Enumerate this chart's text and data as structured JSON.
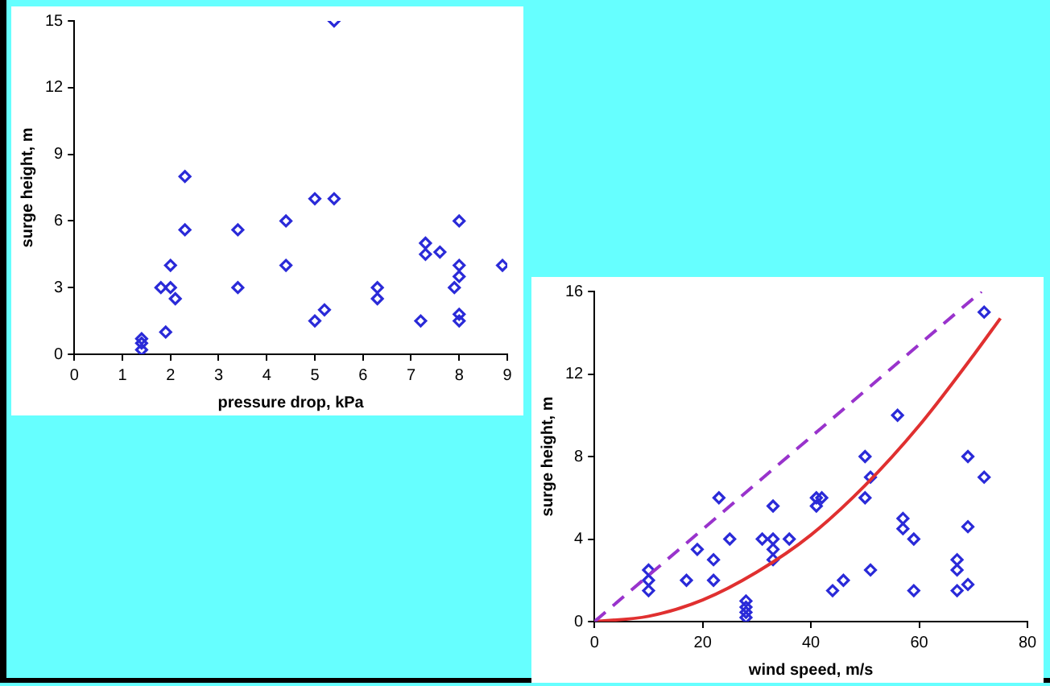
{
  "chart_data": [
    {
      "type": "scatter",
      "xlabel": "pressure drop, kPa",
      "ylabel": "surge height, m",
      "xlim": [
        0,
        9
      ],
      "xticks": [
        0,
        1,
        2,
        3,
        4,
        5,
        6,
        7,
        8,
        9
      ],
      "ylim": [
        0,
        15
      ],
      "yticks": [
        0,
        3,
        6,
        9,
        12,
        15
      ],
      "grid": false,
      "legend": false,
      "marker": "diamond",
      "series": [
        {
          "color": "#2a2ad8",
          "x": [
            1.4,
            1.4,
            1.4,
            1.8,
            1.9,
            2,
            2,
            2.1,
            2.3,
            2.3,
            3.4,
            3.4,
            4.4,
            4.4,
            5,
            5,
            5.2,
            5.4,
            5.4,
            6.3,
            6.3,
            7.2,
            7.3,
            7.3,
            7.6,
            7.9,
            8,
            8,
            8,
            8,
            8,
            8.9
          ],
          "values": [
            0.2,
            0.5,
            0.7,
            3,
            1,
            3,
            4,
            2.5,
            5.6,
            8,
            5.6,
            3,
            6,
            4,
            7,
            1.5,
            2,
            7,
            15,
            3,
            2.5,
            1.5,
            5,
            4.5,
            4.6,
            3,
            6,
            4,
            3.5,
            1.8,
            1.5,
            4
          ]
        }
      ]
    },
    {
      "type": "scatter",
      "xlabel": "wind speed, m/s",
      "ylabel": "surge height, m",
      "xlim": [
        0,
        80
      ],
      "xticks": [
        0,
        20,
        40,
        60,
        80
      ],
      "ylim": [
        0,
        16
      ],
      "yticks": [
        0,
        4,
        8,
        12,
        16
      ],
      "grid": false,
      "legend": false,
      "marker": "diamond",
      "series": [
        {
          "type": "line",
          "color": "#9933cc",
          "line_style": "dashed",
          "marker": "none",
          "x": [
            0,
            71.5
          ],
          "values": [
            0,
            16
          ]
        },
        {
          "type": "line",
          "color": "#e03030",
          "line_style": "solid",
          "marker": "none",
          "x": [
            0,
            10,
            20,
            30,
            40,
            50,
            60,
            70,
            75
          ],
          "values": [
            0,
            0.26,
            1.05,
            2.4,
            4.2,
            6.6,
            9.5,
            12.9,
            14.7
          ]
        },
        {
          "color": "#2a2ad8",
          "x": [
            10,
            10,
            10,
            17,
            19,
            22,
            22,
            23,
            25,
            28,
            28,
            28,
            28,
            31,
            33,
            33,
            33,
            33,
            36,
            41,
            41,
            42,
            44,
            46,
            50,
            50,
            51,
            51,
            56,
            57,
            57,
            59,
            59,
            67,
            67,
            67,
            69,
            69,
            69,
            72,
            72
          ],
          "values": [
            1.5,
            2,
            2.5,
            2,
            3.5,
            2,
            3,
            6,
            4,
            0.2,
            0.45,
            0.7,
            1,
            4,
            3,
            3.5,
            4,
            5.6,
            4,
            5.6,
            6,
            6,
            1.5,
            2,
            8,
            6,
            7,
            2.5,
            10,
            5,
            4.5,
            4,
            1.5,
            1.5,
            2.5,
            3,
            1.8,
            4.6,
            8,
            7,
            15
          ]
        }
      ]
    }
  ]
}
